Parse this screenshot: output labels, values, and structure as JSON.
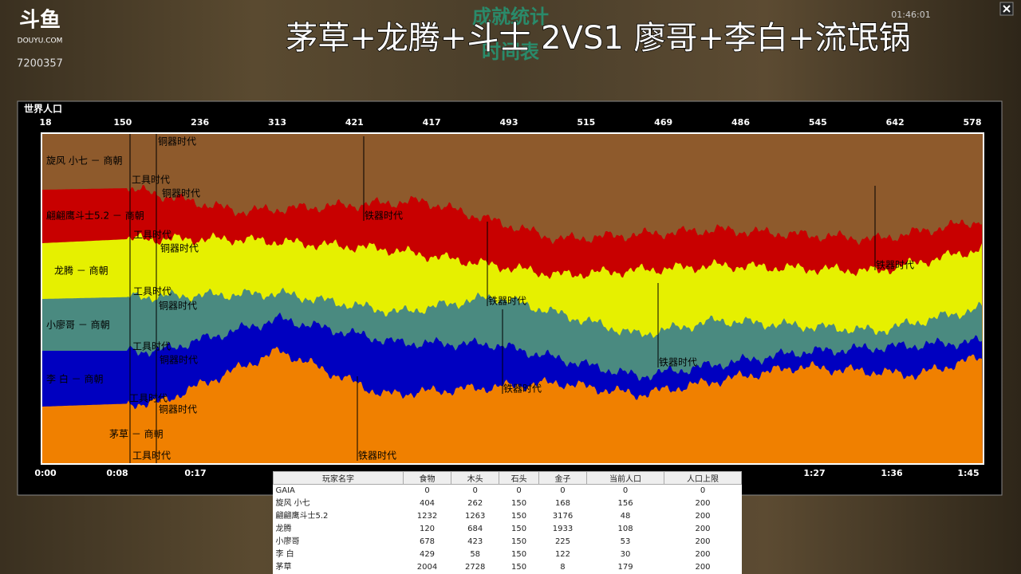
{
  "overlay": {
    "logo": "斗鱼",
    "site": "DOUYU.COM",
    "room": "7200357",
    "title": "茅草+龙腾+斗士 2VS1 廖哥+李白+流氓锅",
    "clock": "01:46:01"
  },
  "game": {
    "header": [
      "成就统计",
      "时间表"
    ],
    "panel_title": "世界人口",
    "population_labels": [
      "18",
      "150",
      "236",
      "313",
      "421",
      "417",
      "493",
      "515",
      "469",
      "486",
      "545",
      "642",
      "578"
    ],
    "time_labels": [
      "0:00",
      "0:08",
      "0:17",
      "1:27",
      "1:36",
      "1:45"
    ],
    "players": [
      "旋风 小七 － 商朝",
      "翩翩鹰斗士5.2 － 商朝",
      "龙腾 － 商朝",
      "小廖哥 － 商朝",
      "李 白 － 商朝",
      "茅草  － 商朝"
    ],
    "age_markers": [
      "铜器时代",
      "工具时代",
      "铜器时代",
      "铁器时代",
      "工具时代",
      "铜器时代",
      "铁器时代",
      "工具时代",
      "铜器时代",
      "铁器时代",
      "工具时代",
      "铜器时代",
      "铁器时代",
      "铁器时代",
      "工具时代",
      "铜器时代",
      "工具时代",
      "铁器时代"
    ]
  },
  "table": {
    "headers": [
      "玩家名字",
      "食物",
      "木头",
      "石头",
      "金子",
      "当前人口",
      "人口上限"
    ],
    "rows": [
      [
        "GAIA",
        "0",
        "0",
        "0",
        "0",
        "0",
        "0"
      ],
      [
        "旋风 小七",
        "404",
        "262",
        "150",
        "168",
        "156",
        "200"
      ],
      [
        "翩翩鹰斗士5.2",
        "1232",
        "1263",
        "150",
        "3176",
        "48",
        "200"
      ],
      [
        "龙腾",
        "120",
        "684",
        "150",
        "1933",
        "108",
        "200"
      ],
      [
        "小廖哥",
        "678",
        "423",
        "150",
        "225",
        "53",
        "200"
      ],
      [
        "李 白",
        "429",
        "58",
        "150",
        "122",
        "30",
        "200"
      ],
      [
        "茅草",
        "2004",
        "2728",
        "150",
        "8",
        "179",
        "200"
      ]
    ]
  }
}
